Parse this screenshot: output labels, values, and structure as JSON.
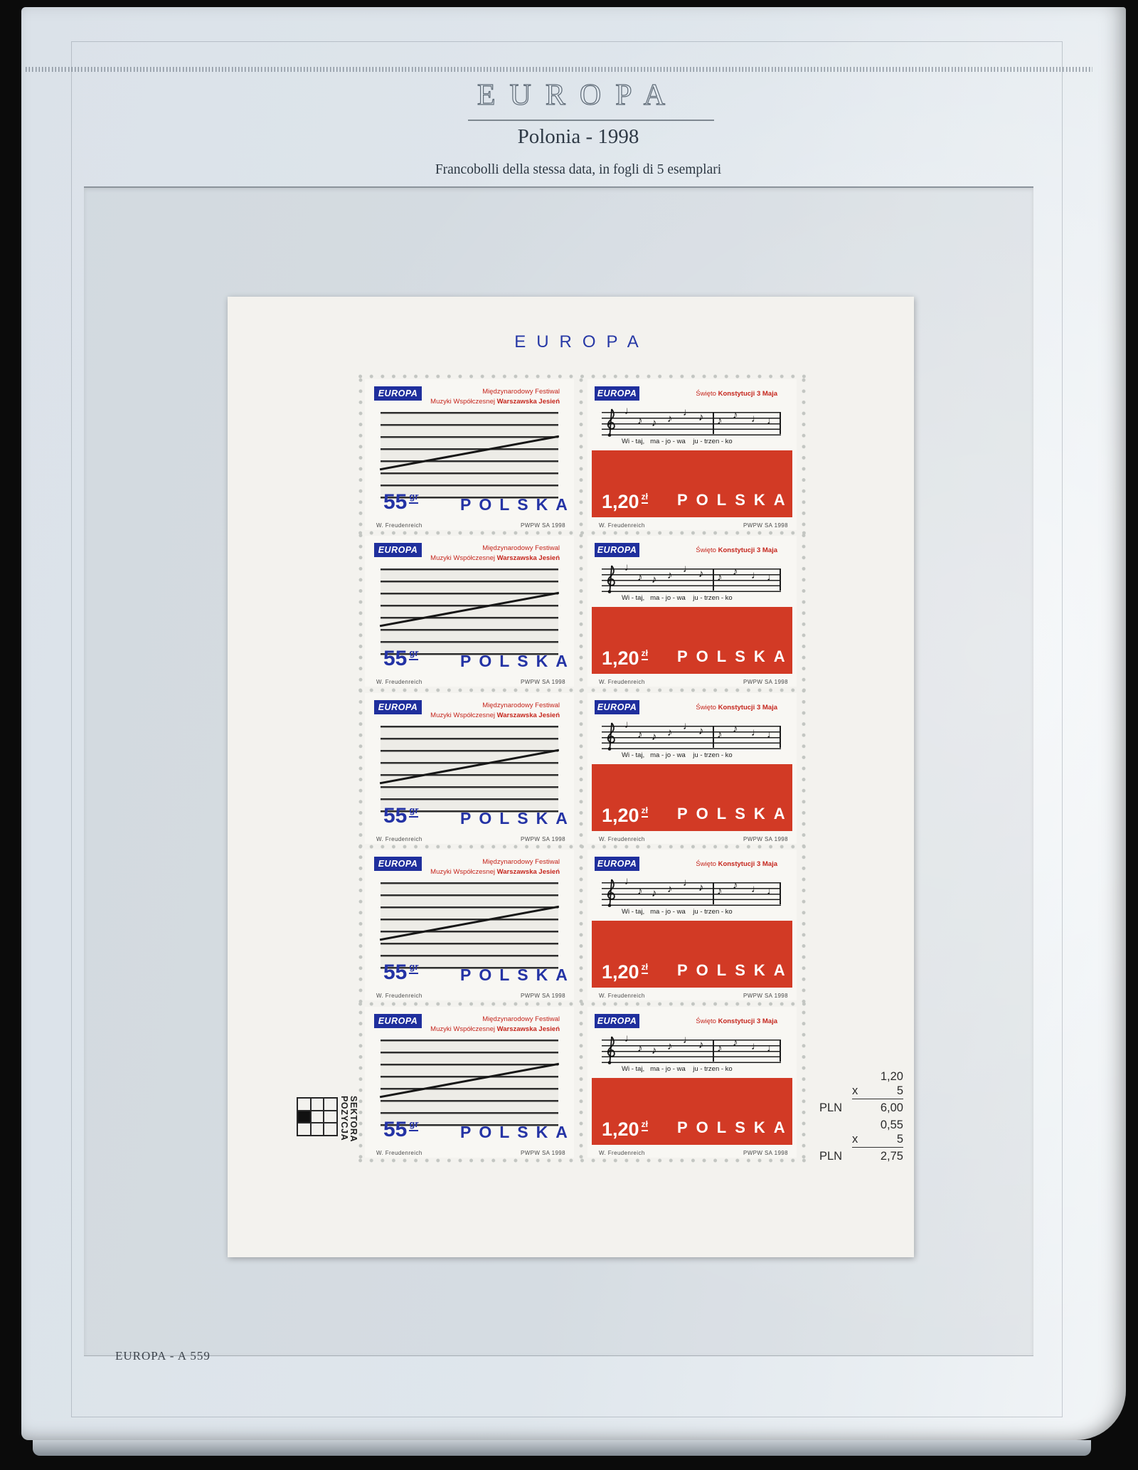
{
  "page": {
    "header": {
      "title": "EUROPA",
      "subtitle": "Polonia - 1998",
      "description": "Francobolli della stessa data, in fogli di 5 esemplari"
    },
    "footer": {
      "catalog_ref": "EUROPA - A 559"
    }
  },
  "sheet": {
    "title": "EUROPA",
    "rows": 5,
    "stamps": {
      "left": {
        "logo": "EUROPA",
        "line1": "Międzynarodowy Festiwal",
        "line2_regular": "Muzyki Współczesnej ",
        "line2_bold": "Warszawska Jesień",
        "value": "55",
        "value_unit": "gr",
        "country": "POLSKA",
        "designer": "W. Freudenreich",
        "printer": "PWPW SA 1998"
      },
      "right": {
        "logo": "EUROPA",
        "title_regular": "Święto ",
        "title_bold": "Konstytucji 3 Maja",
        "notes": [
          "♩",
          "♪",
          "♪",
          "♪",
          "♩",
          "♪",
          "♪",
          "♪",
          "♩",
          "♩"
        ],
        "lyrics": "Wi - taj,   ma - jo - wa    ju - trzen - ko",
        "value": "1,20",
        "value_unit": "zł",
        "country": "POLSKA",
        "designer": "W. Freudenreich",
        "printer": "PWPW SA 1998"
      }
    },
    "position_indicator": {
      "word1": "POZYCJA",
      "word2": "SEKTORA"
    },
    "calculations": [
      {
        "value": "1,20",
        "multiplier": "x",
        "count": "5",
        "currency": "PLN",
        "total": "6,00"
      },
      {
        "value": "0,55",
        "multiplier": "x",
        "count": "5",
        "currency": "PLN",
        "total": "2,75"
      }
    ]
  },
  "colors": {
    "accent_blue": "#2433a5",
    "logo_blue": "#1f2f9d",
    "stamp_red": "#d23a25",
    "caption_red": "#c5251c",
    "page_bg": "#dfe6ec",
    "sheet_bg": "#f3f2ee"
  }
}
